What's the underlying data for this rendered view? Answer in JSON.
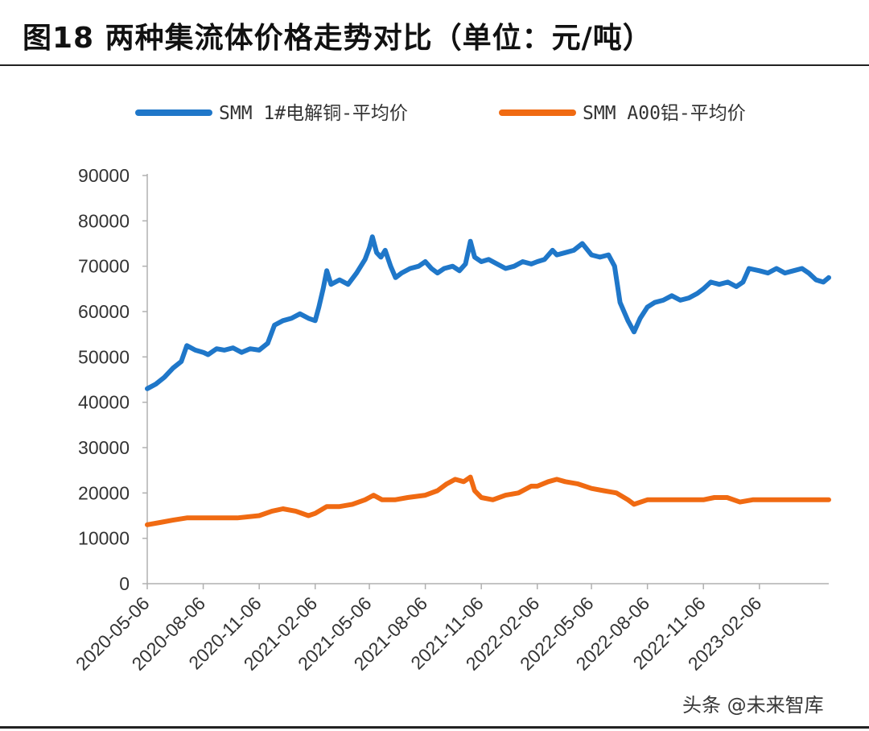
{
  "header": {
    "title": "图18 两种集流体价格走势对比（单位：元/吨）"
  },
  "watermark": {
    "text": "头条 @未来智库"
  },
  "colors": {
    "copper": "#1f77c9",
    "aluminum": "#f06a12",
    "axis": "#b0b0b0",
    "text": "#333333"
  },
  "chart_data": {
    "type": "line",
    "title": "两种集流体价格走势对比（单位：元/吨）",
    "xlabel": "",
    "ylabel": "",
    "ylim": [
      0,
      90000
    ],
    "yticks": [
      0,
      10000,
      20000,
      30000,
      40000,
      50000,
      60000,
      70000,
      80000,
      90000
    ],
    "xlim": [
      "2020-05-06",
      "2023-05-31"
    ],
    "xticks": [
      "2020-05-06",
      "2020-08-06",
      "2020-11-06",
      "2021-02-06",
      "2021-05-06",
      "2021-08-06",
      "2021-11-06",
      "2022-02-06",
      "2022-05-06",
      "2022-08-06",
      "2022-11-06",
      "2023-02-06"
    ],
    "legend_position": "top",
    "series": [
      {
        "name": "SMM 1#电解铜-平均价",
        "color": "#1f77c9",
        "points": [
          [
            "2020-05-06",
            43000
          ],
          [
            "2020-05-20",
            44000
          ],
          [
            "2020-06-03",
            45500
          ],
          [
            "2020-06-17",
            47500
          ],
          [
            "2020-07-01",
            49000
          ],
          [
            "2020-07-10",
            52500
          ],
          [
            "2020-07-24",
            51500
          ],
          [
            "2020-08-06",
            51000
          ],
          [
            "2020-08-14",
            50500
          ],
          [
            "2020-08-28",
            51800
          ],
          [
            "2020-09-10",
            51500
          ],
          [
            "2020-09-24",
            52000
          ],
          [
            "2020-10-08",
            51000
          ],
          [
            "2020-10-22",
            51800
          ],
          [
            "2020-11-06",
            51500
          ],
          [
            "2020-11-20",
            53000
          ],
          [
            "2020-12-01",
            57000
          ],
          [
            "2020-12-15",
            58000
          ],
          [
            "2020-12-29",
            58500
          ],
          [
            "2021-01-12",
            59500
          ],
          [
            "2021-01-26",
            58500
          ],
          [
            "2021-02-06",
            58000
          ],
          [
            "2021-02-12",
            61000
          ],
          [
            "2021-02-19",
            65000
          ],
          [
            "2021-02-25",
            69000
          ],
          [
            "2021-03-04",
            66000
          ],
          [
            "2021-03-18",
            67000
          ],
          [
            "2021-04-01",
            66000
          ],
          [
            "2021-04-15",
            68500
          ],
          [
            "2021-04-29",
            71500
          ],
          [
            "2021-05-06",
            74000
          ],
          [
            "2021-05-11",
            76500
          ],
          [
            "2021-05-18",
            73000
          ],
          [
            "2021-05-25",
            72000
          ],
          [
            "2021-06-01",
            73500
          ],
          [
            "2021-06-10",
            70000
          ],
          [
            "2021-06-18",
            67500
          ],
          [
            "2021-06-28",
            68500
          ],
          [
            "2021-07-12",
            69500
          ],
          [
            "2021-07-26",
            70000
          ],
          [
            "2021-08-06",
            71000
          ],
          [
            "2021-08-16",
            69500
          ],
          [
            "2021-08-26",
            68500
          ],
          [
            "2021-09-06",
            69500
          ],
          [
            "2021-09-20",
            70000
          ],
          [
            "2021-10-01",
            69000
          ],
          [
            "2021-10-11",
            70500
          ],
          [
            "2021-10-19",
            75500
          ],
          [
            "2021-10-26",
            72000
          ],
          [
            "2021-11-06",
            71000
          ],
          [
            "2021-11-18",
            71500
          ],
          [
            "2021-12-02",
            70500
          ],
          [
            "2021-12-16",
            69500
          ],
          [
            "2021-12-30",
            70000
          ],
          [
            "2022-01-13",
            71000
          ],
          [
            "2022-01-27",
            70500
          ],
          [
            "2022-02-06",
            71000
          ],
          [
            "2022-02-18",
            71500
          ],
          [
            "2022-03-03",
            73500
          ],
          [
            "2022-03-10",
            72500
          ],
          [
            "2022-03-24",
            73000
          ],
          [
            "2022-04-07",
            73500
          ],
          [
            "2022-04-21",
            75000
          ],
          [
            "2022-05-06",
            72500
          ],
          [
            "2022-05-20",
            72000
          ],
          [
            "2022-06-03",
            72500
          ],
          [
            "2022-06-13",
            70000
          ],
          [
            "2022-06-22",
            62000
          ],
          [
            "2022-07-05",
            58000
          ],
          [
            "2022-07-15",
            55500
          ],
          [
            "2022-07-25",
            58500
          ],
          [
            "2022-08-06",
            61000
          ],
          [
            "2022-08-18",
            62000
          ],
          [
            "2022-09-01",
            62500
          ],
          [
            "2022-09-15",
            63500
          ],
          [
            "2022-09-29",
            62500
          ],
          [
            "2022-10-13",
            63000
          ],
          [
            "2022-10-27",
            64000
          ],
          [
            "2022-11-06",
            65000
          ],
          [
            "2022-11-18",
            66500
          ],
          [
            "2022-12-02",
            66000
          ],
          [
            "2022-12-16",
            66500
          ],
          [
            "2022-12-30",
            65500
          ],
          [
            "2023-01-10",
            66500
          ],
          [
            "2023-01-20",
            69500
          ],
          [
            "2023-02-06",
            69000
          ],
          [
            "2023-02-20",
            68500
          ],
          [
            "2023-03-06",
            69500
          ],
          [
            "2023-03-20",
            68500
          ],
          [
            "2023-04-03",
            69000
          ],
          [
            "2023-04-17",
            69500
          ],
          [
            "2023-04-28",
            68500
          ],
          [
            "2023-05-10",
            67000
          ],
          [
            "2023-05-22",
            66500
          ],
          [
            "2023-05-31",
            67500
          ]
        ]
      },
      {
        "name": "SMM A00铝-平均价",
        "color": "#f06a12",
        "points": [
          [
            "2020-05-06",
            13000
          ],
          [
            "2020-05-27",
            13500
          ],
          [
            "2020-06-17",
            14000
          ],
          [
            "2020-07-10",
            14500
          ],
          [
            "2020-08-06",
            14500
          ],
          [
            "2020-09-03",
            14500
          ],
          [
            "2020-10-01",
            14500
          ],
          [
            "2020-11-06",
            15000
          ],
          [
            "2020-11-27",
            16000
          ],
          [
            "2020-12-15",
            16500
          ],
          [
            "2021-01-05",
            16000
          ],
          [
            "2021-01-26",
            15000
          ],
          [
            "2021-02-06",
            15500
          ],
          [
            "2021-02-25",
            17000
          ],
          [
            "2021-03-18",
            17000
          ],
          [
            "2021-04-08",
            17500
          ],
          [
            "2021-04-29",
            18500
          ],
          [
            "2021-05-06",
            19000
          ],
          [
            "2021-05-13",
            19500
          ],
          [
            "2021-05-27",
            18500
          ],
          [
            "2021-06-17",
            18500
          ],
          [
            "2021-07-08",
            19000
          ],
          [
            "2021-08-06",
            19500
          ],
          [
            "2021-08-26",
            20500
          ],
          [
            "2021-09-10",
            22000
          ],
          [
            "2021-09-24",
            23000
          ],
          [
            "2021-10-08",
            22500
          ],
          [
            "2021-10-19",
            23500
          ],
          [
            "2021-10-26",
            20500
          ],
          [
            "2021-11-06",
            19000
          ],
          [
            "2021-11-25",
            18500
          ],
          [
            "2021-12-16",
            19500
          ],
          [
            "2022-01-06",
            20000
          ],
          [
            "2022-01-27",
            21500
          ],
          [
            "2022-02-06",
            21500
          ],
          [
            "2022-02-24",
            22500
          ],
          [
            "2022-03-10",
            23000
          ],
          [
            "2022-03-24",
            22500
          ],
          [
            "2022-04-14",
            22000
          ],
          [
            "2022-05-06",
            21000
          ],
          [
            "2022-05-26",
            20500
          ],
          [
            "2022-06-16",
            20000
          ],
          [
            "2022-07-05",
            18500
          ],
          [
            "2022-07-15",
            17500
          ],
          [
            "2022-08-06",
            18500
          ],
          [
            "2022-08-25",
            18500
          ],
          [
            "2022-09-22",
            18500
          ],
          [
            "2022-10-20",
            18500
          ],
          [
            "2022-11-06",
            18500
          ],
          [
            "2022-11-24",
            19000
          ],
          [
            "2022-12-15",
            19000
          ],
          [
            "2023-01-05",
            18000
          ],
          [
            "2023-01-26",
            18500
          ],
          [
            "2023-02-06",
            18500
          ],
          [
            "2023-03-02",
            18500
          ],
          [
            "2023-03-30",
            18500
          ],
          [
            "2023-04-20",
            18500
          ],
          [
            "2023-05-10",
            18500
          ],
          [
            "2023-05-31",
            18500
          ]
        ]
      }
    ]
  }
}
